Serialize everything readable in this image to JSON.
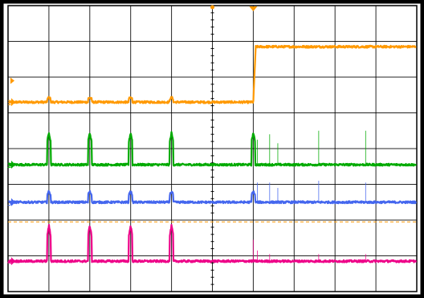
{
  "chart_data": {
    "type": "line",
    "title": "",
    "xlabel": "",
    "ylabel": "",
    "grid": true,
    "divisions": {
      "x": 10,
      "y": 8
    },
    "xlim": [
      0,
      10
    ],
    "ylim": [
      0,
      8
    ],
    "trigger_x": 6,
    "trigger_level_y": 1.95,
    "series": [
      {
        "channel": "1",
        "color": "#ff9900",
        "baseline": 5.3,
        "edge": {
          "at": 6,
          "from": 5.3,
          "to": 6.85
        },
        "pulses": {
          "at": [
            1,
            2,
            3,
            4
          ],
          "height": 0.13
        },
        "spikes": []
      },
      {
        "channel": "2",
        "color": "#00aa00",
        "baseline": 3.55,
        "edge": null,
        "pulses": {
          "at": [
            1,
            2,
            3,
            4,
            6
          ],
          "height": 0.9
        },
        "spikes": [
          {
            "at": 6.1,
            "height": 0.7
          },
          {
            "at": 6.4,
            "height": 0.85
          },
          {
            "at": 6.6,
            "height": 0.6
          },
          {
            "at": 7.6,
            "height": 0.95
          },
          {
            "at": 8.75,
            "height": 0.95
          }
        ]
      },
      {
        "channel": "3",
        "color": "#4466ee",
        "baseline": 2.5,
        "edge": null,
        "pulses": {
          "at": [
            1,
            2,
            3,
            4,
            6
          ],
          "height": 0.3
        },
        "spikes": [
          {
            "at": 6.1,
            "height": 0.55
          },
          {
            "at": 6.4,
            "height": 0.55
          },
          {
            "at": 6.6,
            "height": 0.4
          },
          {
            "at": 7.6,
            "height": 0.6
          },
          {
            "at": 8.75,
            "height": 0.55
          }
        ]
      },
      {
        "channel": "4",
        "color": "#ee0088",
        "baseline": 0.85,
        "edge": null,
        "pulses": {
          "at": [
            1,
            2,
            3,
            4
          ],
          "height": 1.0
        },
        "spikes": [
          {
            "at": 6.0,
            "height": 0.6
          },
          {
            "at": 6.1,
            "height": 0.3
          },
          {
            "at": 6.4,
            "height": 0.2
          },
          {
            "at": 7.6,
            "height": 0.2
          },
          {
            "at": 8.75,
            "height": 0.2
          }
        ]
      }
    ]
  }
}
